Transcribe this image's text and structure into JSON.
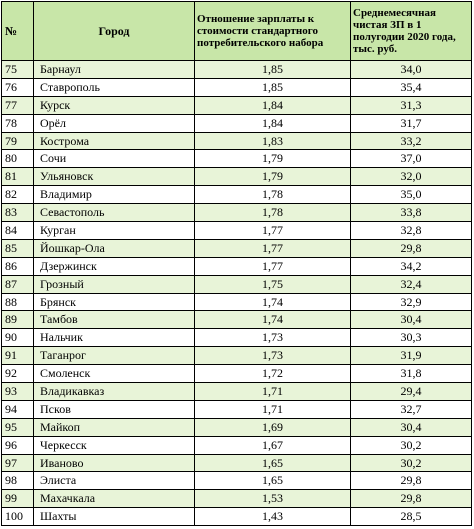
{
  "table": {
    "headers": {
      "num": "№",
      "city": "Город",
      "ratio_lines": [
        "Отношение зарплаты к",
        "стоимости стандартного",
        "потребительского набора"
      ],
      "salary_lines": [
        "Среднемесячная",
        "чистая ЗП в 1",
        "полугодии 2020 года,",
        "тыс. руб."
      ]
    },
    "rows": [
      {
        "num": "75",
        "city": "Барнаул",
        "ratio": "1,85",
        "salary": "34,0"
      },
      {
        "num": "76",
        "city": "Ставрополь",
        "ratio": "1,85",
        "salary": "35,4"
      },
      {
        "num": "77",
        "city": "Курск",
        "ratio": "1,84",
        "salary": "31,3"
      },
      {
        "num": "78",
        "city": "Орёл",
        "ratio": "1,84",
        "salary": "31,7"
      },
      {
        "num": "79",
        "city": "Кострома",
        "ratio": "1,83",
        "salary": "33,2"
      },
      {
        "num": "80",
        "city": "Сочи",
        "ratio": "1,79",
        "salary": "37,0"
      },
      {
        "num": "81",
        "city": "Ульяновск",
        "ratio": "1,79",
        "salary": "32,0"
      },
      {
        "num": "82",
        "city": "Владимир",
        "ratio": "1,78",
        "salary": "35,0"
      },
      {
        "num": "83",
        "city": "Севастополь",
        "ratio": "1,78",
        "salary": "33,8"
      },
      {
        "num": "84",
        "city": "Курган",
        "ratio": "1,77",
        "salary": "32,8"
      },
      {
        "num": "85",
        "city": "Йошкар-Ола",
        "ratio": "1,77",
        "salary": "29,8"
      },
      {
        "num": "86",
        "city": "Дзержинск",
        "ratio": "1,77",
        "salary": "34,2"
      },
      {
        "num": "87",
        "city": "Грозный",
        "ratio": "1,75",
        "salary": "32,4"
      },
      {
        "num": "88",
        "city": "Брянск",
        "ratio": "1,74",
        "salary": "32,9"
      },
      {
        "num": "89",
        "city": "Тамбов",
        "ratio": "1,74",
        "salary": "30,4"
      },
      {
        "num": "90",
        "city": "Нальчик",
        "ratio": "1,73",
        "salary": "30,3"
      },
      {
        "num": "91",
        "city": "Таганрог",
        "ratio": "1,73",
        "salary": "31,9"
      },
      {
        "num": "92",
        "city": "Смоленск",
        "ratio": "1,72",
        "salary": "31,8"
      },
      {
        "num": "93",
        "city": "Владикавказ",
        "ratio": "1,71",
        "salary": "29,4"
      },
      {
        "num": "94",
        "city": "Псков",
        "ratio": "1,71",
        "salary": "32,7"
      },
      {
        "num": "95",
        "city": "Майкоп",
        "ratio": "1,69",
        "salary": "30,4"
      },
      {
        "num": "96",
        "city": "Черкесск",
        "ratio": "1,67",
        "salary": "30,2"
      },
      {
        "num": "97",
        "city": "Иваново",
        "ratio": "1,65",
        "salary": "30,2"
      },
      {
        "num": "98",
        "city": "Элиста",
        "ratio": "1,65",
        "salary": "29,8"
      },
      {
        "num": "99",
        "city": "Махачкала",
        "ratio": "1,53",
        "salary": "29,8"
      },
      {
        "num": "100",
        "city": "Шахты",
        "ratio": "1,43",
        "salary": "28,5"
      }
    ]
  },
  "colors": {
    "header_bg": "#c8e6a8",
    "row_alt_bg": "#e8f4d8",
    "border": "#000000"
  }
}
